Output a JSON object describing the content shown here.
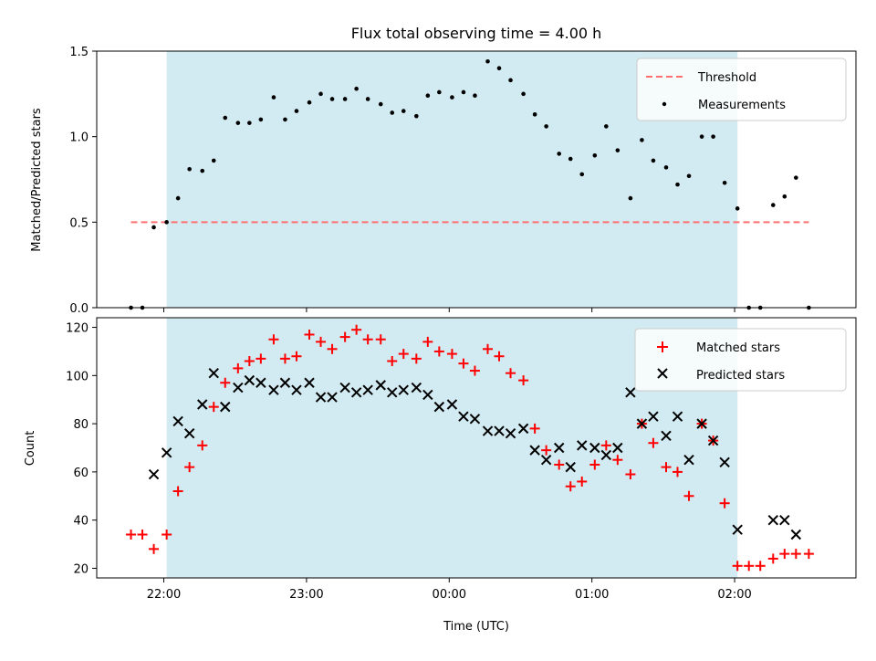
{
  "chart_data": [
    {
      "type": "scatter",
      "title": "Flux total observing time = 4.00 h",
      "ylabel": "Matched/Predicted stars",
      "xlabel": "",
      "ylim": [
        0,
        1.5
      ],
      "yticks": [
        0.0,
        0.5,
        1.0,
        1.5
      ],
      "ytick_labels": [
        "0.0",
        "0.5",
        "1.0",
        "1.5"
      ],
      "x_unit": "hours after 22:00 UTC",
      "xlim": [
        -0.47,
        4.85
      ],
      "shaded_span": [
        0.02,
        4.02
      ],
      "shaded_color": "#add8e6",
      "threshold": {
        "label": "Threshold",
        "value": 0.5,
        "x_range": [
          -0.23,
          4.52
        ],
        "color": "#ff7070"
      },
      "legend": {
        "position": "upper right",
        "entries": [
          "Threshold",
          "Measurements"
        ]
      },
      "series": [
        {
          "name": "Measurements",
          "color": "#000000",
          "marker": "dot",
          "x": [
            -0.23,
            -0.15,
            -0.07,
            0.02,
            0.1,
            0.18,
            0.27,
            0.35,
            0.43,
            0.52,
            0.6,
            0.68,
            0.77,
            0.85,
            0.93,
            1.02,
            1.1,
            1.18,
            1.27,
            1.35,
            1.43,
            1.52,
            1.6,
            1.68,
            1.77,
            1.85,
            1.93,
            2.02,
            2.1,
            2.18,
            2.27,
            2.35,
            2.43,
            2.52,
            2.6,
            2.68,
            2.77,
            2.85,
            2.93,
            3.02,
            3.1,
            3.18,
            3.27,
            3.35,
            3.43,
            3.52,
            3.6,
            3.68,
            3.77,
            3.85,
            3.93,
            4.02,
            4.1,
            4.18,
            4.27,
            4.35,
            4.43,
            4.52
          ],
          "y": [
            0.0,
            0.0,
            0.47,
            0.5,
            0.64,
            0.81,
            0.8,
            0.86,
            1.11,
            1.08,
            1.08,
            1.1,
            1.23,
            1.1,
            1.15,
            1.2,
            1.25,
            1.22,
            1.22,
            1.28,
            1.22,
            1.19,
            1.14,
            1.15,
            1.12,
            1.24,
            1.26,
            1.23,
            1.26,
            1.24,
            1.44,
            1.4,
            1.33,
            1.25,
            1.13,
            1.06,
            0.9,
            0.87,
            0.78,
            0.89,
            1.06,
            0.92,
            0.64,
            0.98,
            0.86,
            0.82,
            0.72,
            0.77,
            1.0,
            1.0,
            0.73,
            0.58,
            0.0,
            0.0,
            0.6,
            0.65,
            0.76,
            0.0
          ]
        }
      ]
    },
    {
      "type": "scatter",
      "title": "",
      "ylabel": "Count",
      "xlabel": "Time (UTC)",
      "ylim": [
        16,
        124
      ],
      "yticks": [
        20,
        40,
        60,
        80,
        100,
        120
      ],
      "ytick_labels": [
        "20",
        "40",
        "60",
        "80",
        "100",
        "120"
      ],
      "xticks": [
        0,
        1,
        2,
        3,
        4
      ],
      "xtick_labels": [
        "22:00",
        "23:00",
        "00:00",
        "01:00",
        "02:00"
      ],
      "shaded_span": [
        0.02,
        4.02
      ],
      "legend": {
        "position": "upper right",
        "entries": [
          "Matched stars",
          "Predicted stars"
        ]
      },
      "series": [
        {
          "name": "Matched stars",
          "color": "#ff0000",
          "marker": "plus",
          "x": [
            -0.23,
            -0.15,
            -0.07,
            0.02,
            0.1,
            0.18,
            0.27,
            0.35,
            0.43,
            0.52,
            0.6,
            0.68,
            0.77,
            0.85,
            0.93,
            1.02,
            1.1,
            1.18,
            1.27,
            1.35,
            1.43,
            1.52,
            1.6,
            1.68,
            1.77,
            1.85,
            1.93,
            2.02,
            2.1,
            2.18,
            2.27,
            2.35,
            2.43,
            2.52,
            2.6,
            2.68,
            2.77,
            2.85,
            2.93,
            3.02,
            3.1,
            3.18,
            3.27,
            3.35,
            3.43,
            3.52,
            3.6,
            3.68,
            3.77,
            3.85,
            3.93,
            4.02,
            4.1,
            4.18,
            4.27,
            4.35,
            4.43,
            4.52
          ],
          "y": [
            34,
            34,
            28,
            34,
            52,
            62,
            71,
            87,
            97,
            103,
            106,
            107,
            115,
            107,
            108,
            117,
            114,
            111,
            116,
            119,
            115,
            115,
            106,
            109,
            107,
            114,
            110,
            109,
            105,
            102,
            111,
            108,
            101,
            98,
            78,
            69,
            63,
            54,
            56,
            63,
            71,
            65,
            59,
            80,
            72,
            62,
            60,
            50,
            80,
            73,
            47,
            21,
            21,
            21,
            24,
            26,
            26,
            26
          ]
        },
        {
          "name": "Predicted stars",
          "color": "#000000",
          "marker": "x",
          "x": [
            -0.07,
            0.02,
            0.1,
            0.18,
            0.27,
            0.35,
            0.43,
            0.52,
            0.6,
            0.68,
            0.77,
            0.85,
            0.93,
            1.02,
            1.1,
            1.18,
            1.27,
            1.35,
            1.43,
            1.52,
            1.6,
            1.68,
            1.77,
            1.85,
            1.93,
            2.02,
            2.1,
            2.18,
            2.27,
            2.35,
            2.43,
            2.52,
            2.6,
            2.68,
            2.77,
            2.85,
            2.93,
            3.02,
            3.1,
            3.18,
            3.27,
            3.35,
            3.43,
            3.52,
            3.6,
            3.68,
            3.77,
            3.85,
            3.93,
            4.02,
            4.27,
            4.35,
            4.43
          ],
          "y": [
            59,
            68,
            81,
            76,
            88,
            101,
            87,
            95,
            98,
            97,
            94,
            97,
            94,
            97,
            91,
            91,
            95,
            93,
            94,
            96,
            93,
            94,
            95,
            92,
            87,
            88,
            83,
            82,
            77,
            77,
            76,
            78,
            69,
            65,
            70,
            62,
            71,
            70,
            67,
            70,
            93,
            80,
            83,
            75,
            83,
            65,
            80,
            73,
            64,
            36,
            40,
            40,
            34
          ]
        }
      ]
    }
  ]
}
